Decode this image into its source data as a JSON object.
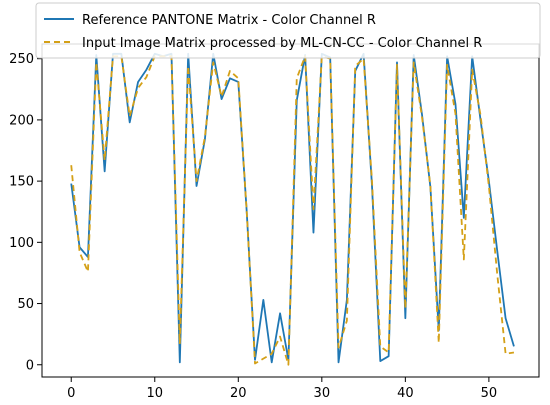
{
  "chart_data": {
    "type": "line",
    "title": "",
    "xlabel": "",
    "ylabel": "",
    "xlim": [
      -3.5,
      56
    ],
    "ylim": [
      -10,
      262
    ],
    "xticks": [
      0,
      10,
      20,
      30,
      40,
      50
    ],
    "yticks": [
      0,
      50,
      100,
      150,
      200,
      250
    ],
    "grid": false,
    "legend_position": "top",
    "x": [
      0,
      1,
      2,
      3,
      4,
      5,
      6,
      7,
      8,
      9,
      10,
      11,
      12,
      13,
      14,
      15,
      16,
      17,
      18,
      19,
      20,
      21,
      22,
      23,
      24,
      25,
      26,
      27,
      28,
      29,
      30,
      31,
      32,
      33,
      34,
      35,
      36,
      37,
      38,
      39,
      40,
      41,
      42,
      43,
      44,
      45,
      46,
      47,
      48,
      49,
      50,
      51,
      52,
      53
    ],
    "series": [
      {
        "name": "Reference PANTONE Matrix - Color Channel R",
        "color": "#1f77b4",
        "style": "solid",
        "values": [
          148,
          96,
          88,
          253,
          158,
          254,
          254,
          198,
          231,
          241,
          254,
          252,
          254,
          2,
          254,
          146,
          184,
          254,
          217,
          234,
          231,
          126,
          4,
          53,
          2,
          42,
          4,
          216,
          253,
          108,
          254,
          251,
          2,
          53,
          240,
          254,
          147,
          3,
          7,
          247,
          38,
          253,
          204,
          145,
          28,
          252,
          213,
          120,
          252,
          200,
          150,
          93,
          38,
          15
        ]
      },
      {
        "name": "Input Image Matrix processed by ML-CN-CC - Color Channel R",
        "color": "#d4a017",
        "style": "dashed",
        "values": [
          163,
          92,
          76,
          247,
          167,
          252,
          252,
          203,
          226,
          235,
          252,
          252,
          252,
          17,
          244,
          150,
          186,
          247,
          219,
          240,
          234,
          126,
          1,
          5,
          9,
          23,
          0,
          234,
          252,
          127,
          252,
          250,
          14,
          36,
          244,
          250,
          151,
          15,
          10,
          245,
          46,
          247,
          202,
          146,
          18,
          245,
          205,
          86,
          241,
          204,
          146,
          74,
          9,
          10
        ]
      }
    ]
  }
}
